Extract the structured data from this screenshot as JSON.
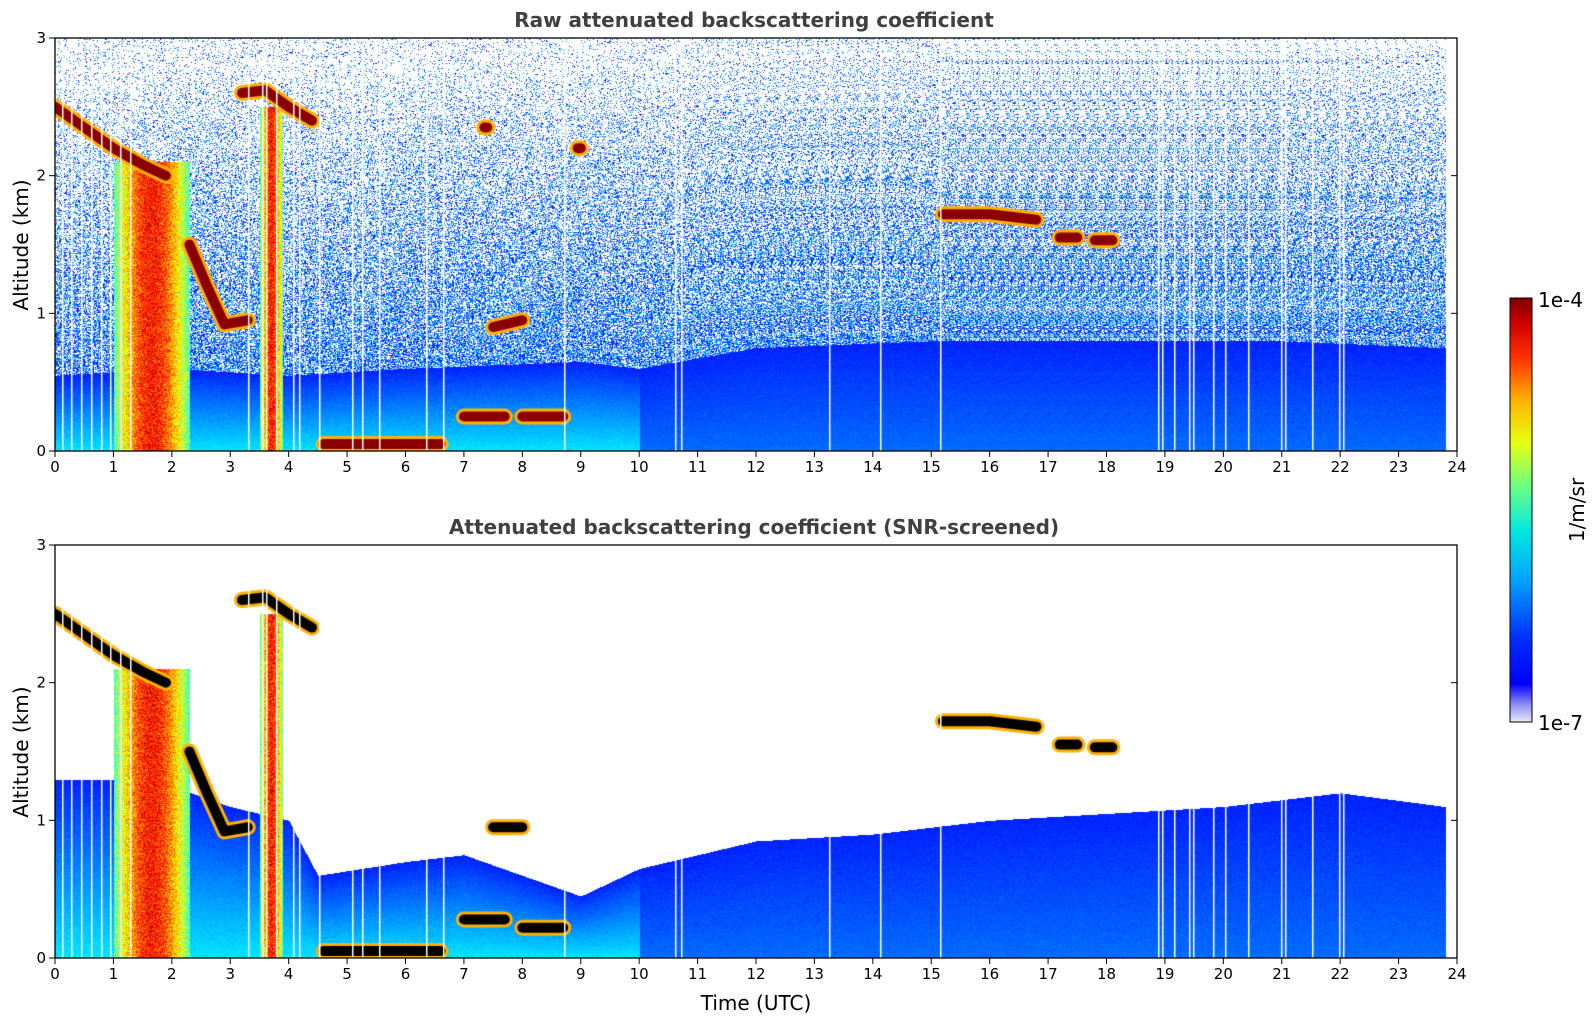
{
  "chart_data": [
    {
      "type": "heatmap",
      "title": "Raw attenuated backscattering coefficient",
      "xlabel": "",
      "ylabel": "Altitude (km)",
      "xlim": [
        0,
        24
      ],
      "ylim": [
        0,
        3
      ],
      "xticks": [
        "0",
        "1",
        "2",
        "3",
        "4",
        "5",
        "6",
        "7",
        "8",
        "9",
        "10",
        "11",
        "12",
        "13",
        "14",
        "15",
        "16",
        "17",
        "18",
        "19",
        "20",
        "21",
        "22",
        "23",
        "24"
      ],
      "yticks": [
        "0",
        "1",
        "2",
        "3"
      ],
      "background_noise": "high",
      "boundary_layer_top_km": [
        [
          0,
          0.55
        ],
        [
          2,
          0.6
        ],
        [
          4,
          0.55
        ],
        [
          6,
          0.6
        ],
        [
          9,
          0.65
        ],
        [
          10,
          0.6
        ],
        [
          12,
          0.75
        ],
        [
          15,
          0.8
        ],
        [
          18,
          0.8
        ],
        [
          21,
          0.8
        ],
        [
          23.8,
          0.75
        ]
      ],
      "cloud_layers": [
        {
          "x": [
            0,
            0.5,
            1.0,
            1.5,
            1.9
          ],
          "y": [
            2.5,
            2.35,
            2.2,
            2.08,
            2.0
          ],
          "value": "high"
        },
        {
          "x": [
            3.2,
            3.6,
            4.0,
            4.4
          ],
          "y": [
            2.6,
            2.62,
            2.5,
            2.4
          ],
          "value": "high"
        },
        {
          "x": [
            2.3,
            2.6,
            2.9,
            3.3
          ],
          "y": [
            1.5,
            1.2,
            0.92,
            0.95
          ],
          "value": "high"
        },
        {
          "x": [
            7.5,
            8.0
          ],
          "y": [
            0.9,
            0.95
          ],
          "value": "high"
        },
        {
          "x": [
            7.0,
            7.7
          ],
          "y": [
            0.25,
            0.25
          ],
          "value": "high"
        },
        {
          "x": [
            8.0,
            8.7
          ],
          "y": [
            0.25,
            0.25
          ],
          "value": "high"
        },
        {
          "x": [
            15.2,
            16.0,
            16.8
          ],
          "y": [
            1.72,
            1.72,
            1.68
          ],
          "value": "high"
        },
        {
          "x": [
            17.2,
            17.5
          ],
          "y": [
            1.55,
            1.55
          ],
          "value": "high"
        },
        {
          "x": [
            17.8,
            18.1
          ],
          "y": [
            1.53,
            1.53
          ],
          "value": "high"
        },
        {
          "x": [
            4.6,
            6.6
          ],
          "y": [
            0.05,
            0.05
          ],
          "value": "high"
        },
        {
          "x": [
            8.95,
            9.0
          ],
          "y": [
            2.2,
            2.2
          ],
          "value": "high"
        },
        {
          "x": [
            7.35,
            7.4
          ],
          "y": [
            2.35,
            2.35
          ],
          "value": "high"
        }
      ],
      "precip_columns": [
        {
          "x": [
            1.0,
            2.3
          ],
          "top_km": 2.1
        },
        {
          "x": [
            3.5,
            3.9
          ],
          "top_km": 2.5
        }
      ]
    },
    {
      "type": "heatmap",
      "title": "Attenuated backscattering coefficient (SNR-screened)",
      "xlabel": "Time (UTC)",
      "ylabel": "Altitude (km)",
      "xlim": [
        0,
        24
      ],
      "ylim": [
        0,
        3
      ],
      "xticks": [
        "0",
        "1",
        "2",
        "3",
        "4",
        "5",
        "6",
        "7",
        "8",
        "9",
        "10",
        "11",
        "12",
        "13",
        "14",
        "15",
        "16",
        "17",
        "18",
        "19",
        "20",
        "21",
        "22",
        "23",
        "24"
      ],
      "yticks": [
        "0",
        "1",
        "2",
        "3"
      ],
      "background_noise": "none",
      "boundary_layer_top_km": [
        [
          0,
          1.3
        ],
        [
          1,
          1.3
        ],
        [
          2,
          1.25
        ],
        [
          3,
          1.1
        ],
        [
          4,
          1.0
        ],
        [
          4.5,
          0.6
        ],
        [
          6,
          0.7
        ],
        [
          7,
          0.75
        ],
        [
          8,
          0.6
        ],
        [
          9,
          0.45
        ],
        [
          10,
          0.65
        ],
        [
          12,
          0.85
        ],
        [
          14,
          0.9
        ],
        [
          15,
          0.95
        ],
        [
          16,
          1.0
        ],
        [
          18,
          1.05
        ],
        [
          20,
          1.1
        ],
        [
          22,
          1.2
        ],
        [
          23.8,
          1.1
        ]
      ],
      "cloud_layers": [
        {
          "x": [
            0,
            0.5,
            1.0,
            1.5,
            1.9
          ],
          "y": [
            2.5,
            2.35,
            2.2,
            2.08,
            2.0
          ],
          "value": "saturated"
        },
        {
          "x": [
            3.2,
            3.6,
            4.0,
            4.4
          ],
          "y": [
            2.6,
            2.62,
            2.5,
            2.4
          ],
          "value": "saturated"
        },
        {
          "x": [
            2.3,
            2.6,
            2.9,
            3.3
          ],
          "y": [
            1.5,
            1.2,
            0.92,
            0.95
          ],
          "value": "saturated"
        },
        {
          "x": [
            7.5,
            8.0
          ],
          "y": [
            0.95,
            0.95
          ],
          "value": "saturated"
        },
        {
          "x": [
            7.0,
            7.7
          ],
          "y": [
            0.28,
            0.28
          ],
          "value": "saturated"
        },
        {
          "x": [
            8.0,
            8.7
          ],
          "y": [
            0.22,
            0.22
          ],
          "value": "saturated"
        },
        {
          "x": [
            15.2,
            16.0,
            16.8
          ],
          "y": [
            1.72,
            1.72,
            1.68
          ],
          "value": "saturated"
        },
        {
          "x": [
            17.2,
            17.5
          ],
          "y": [
            1.55,
            1.55
          ],
          "value": "saturated"
        },
        {
          "x": [
            17.8,
            18.1
          ],
          "y": [
            1.53,
            1.53
          ],
          "value": "saturated"
        },
        {
          "x": [
            4.6,
            6.6
          ],
          "y": [
            0.05,
            0.05
          ],
          "value": "saturated"
        }
      ],
      "precip_columns": [
        {
          "x": [
            1.0,
            2.3
          ],
          "top_km": 2.1
        },
        {
          "x": [
            3.5,
            3.9
          ],
          "top_km": 2.5
        }
      ]
    }
  ],
  "colorbar": {
    "label": "1/m/sr",
    "max_label": "1e-4",
    "min_label": "1e-7",
    "colormap": "jet",
    "scale": "log"
  },
  "missing_time_columns_utc": [
    0.12,
    0.28,
    0.45,
    0.62,
    0.78,
    0.95,
    1.12,
    1.28,
    3.3,
    3.55,
    3.62,
    3.78,
    4.08,
    4.18,
    4.52,
    5.08,
    5.25,
    5.55,
    6.35,
    6.65,
    8.72,
    10.62,
    10.72,
    13.25,
    14.12,
    15.15,
    18.88,
    18.95,
    19.15,
    19.42,
    19.48,
    19.82,
    20.02,
    20.42,
    20.98,
    21.05,
    21.52,
    21.98,
    22.05
  ],
  "colors": {
    "missing": "#ffffff",
    "saturated": "#000000",
    "jet_low": "#1f1fff",
    "jet_high": "#7f0000"
  }
}
